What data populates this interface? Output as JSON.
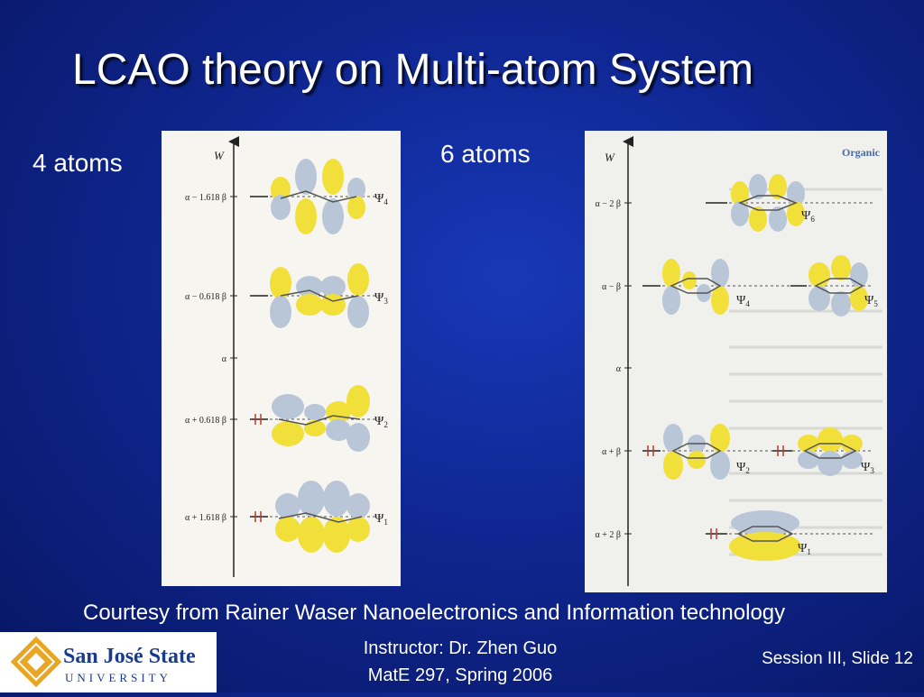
{
  "slide": {
    "title": "LCAO theory on Multi-atom System",
    "label_left": "4 atoms",
    "label_right": "6 atoms",
    "courtesy": "Courtesy from Rainer Waser Nanoelectronics and Information technology",
    "instructor_line1": "Instructor: Dr. Zhen Guo",
    "instructor_line2": "MatE 297, Spring 2006",
    "session": "Session III, Slide 12",
    "logo_line1": "San José State",
    "logo_line2": "UNIVERSITY"
  },
  "diagram4": {
    "axis_label": "W",
    "levels": [
      {
        "energy": "α − 1.618 β",
        "psi": "Ψ",
        "sub": "4"
      },
      {
        "energy": "α − 0.618 β",
        "psi": "Ψ",
        "sub": "3"
      },
      {
        "energy": "α",
        "psi": "",
        "sub": ""
      },
      {
        "energy": "α + 0.618 β",
        "psi": "Ψ",
        "sub": "2"
      },
      {
        "energy": "α + 1.618 β",
        "psi": "Ψ",
        "sub": "1"
      }
    ]
  },
  "diagram6": {
    "axis_label": "W",
    "corner_text": "Organic",
    "levels": [
      {
        "energy": "α − 2 β",
        "psi": "Ψ",
        "sub": "6"
      },
      {
        "energy": "α − β",
        "psi": "Ψ",
        "sub": "4",
        "psi_b": "Ψ",
        "sub_b": "5"
      },
      {
        "energy": "α",
        "psi": "",
        "sub": ""
      },
      {
        "energy": "α + β",
        "psi": "Ψ",
        "sub": "2",
        "psi_b": "Ψ",
        "sub_b": "3"
      },
      {
        "energy": "α + 2 β",
        "psi": "Ψ",
        "sub": "1"
      }
    ]
  },
  "colors": {
    "lobe_blue": "#b8c6d8",
    "lobe_yellow": "#f1df3a",
    "electron_red": "#c0392b"
  }
}
